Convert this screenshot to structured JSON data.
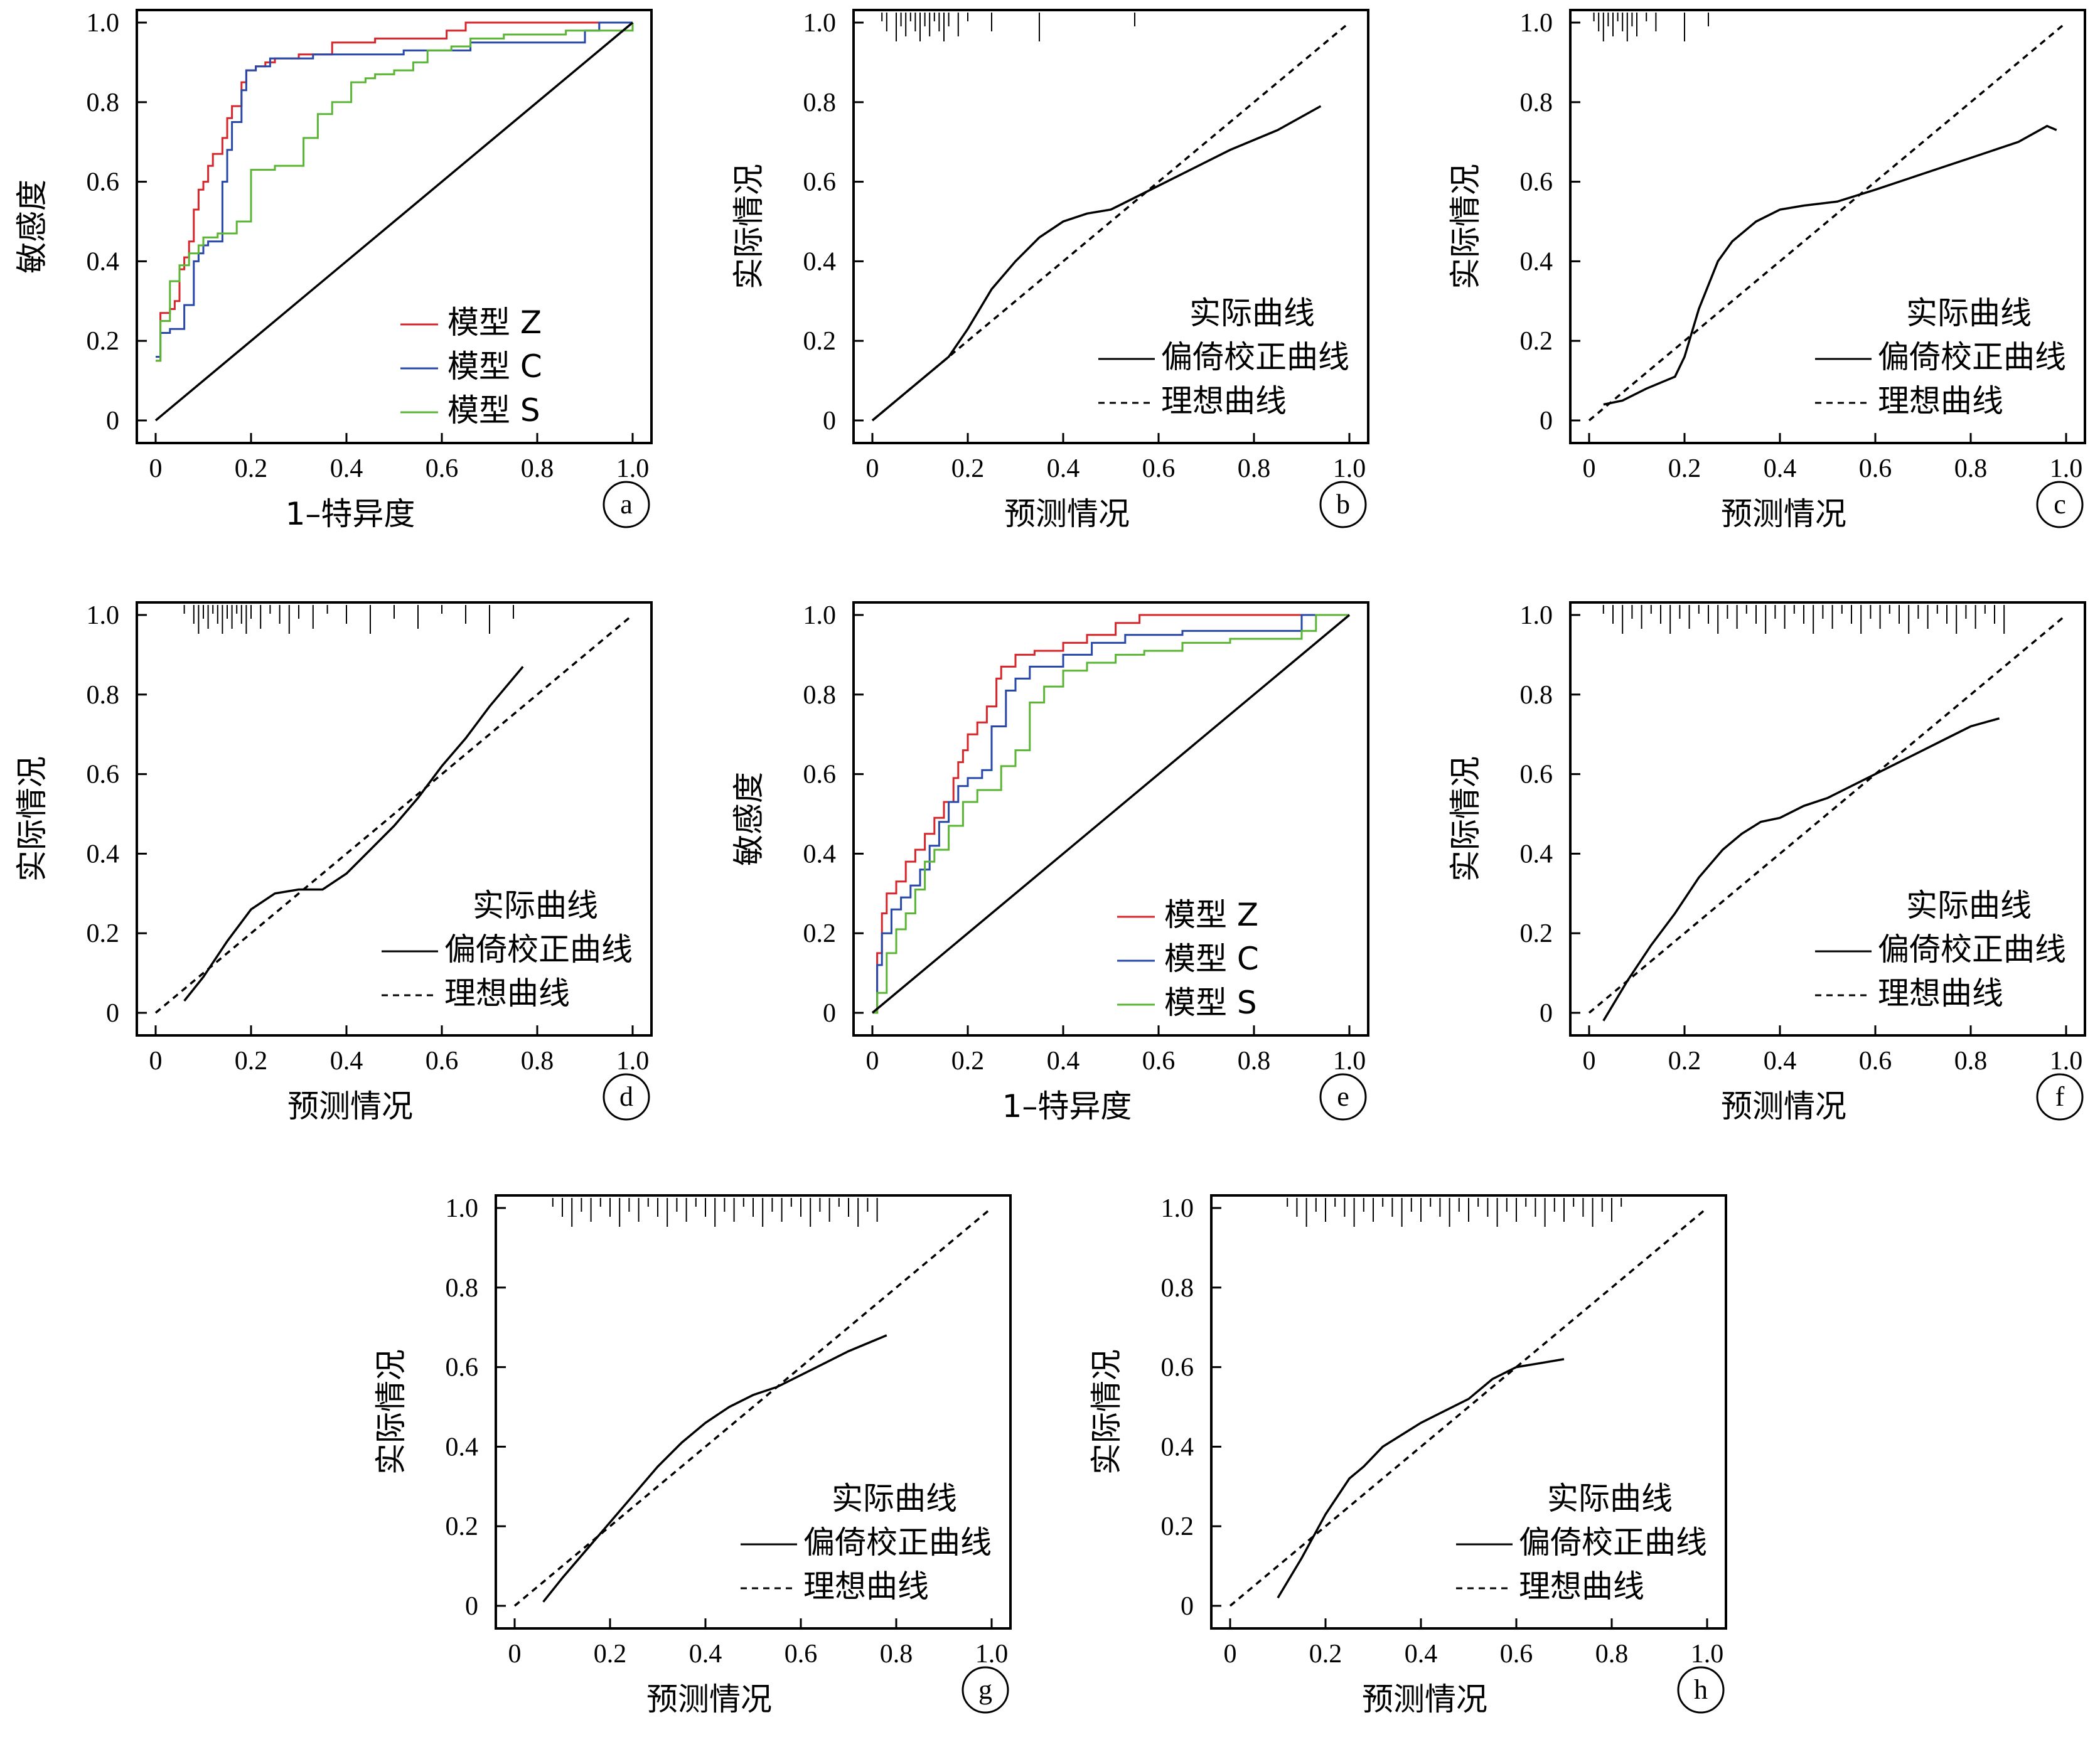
{
  "colors": {
    "model_z": "#d7262b",
    "model_c": "#2748a8",
    "model_s": "#5bb535",
    "curve": "#000000",
    "ideal": "#000000"
  },
  "x_ticks": [
    "0",
    "0.2",
    "0.4",
    "0.6",
    "0.8",
    "1.0"
  ],
  "y_ticks": [
    "0",
    "0.2",
    "0.4",
    "0.6",
    "0.8",
    "1.0"
  ],
  "chart_data": [
    {
      "panel": "a",
      "type": "line",
      "xlabel": "1–特异度",
      "ylabel": "敏感度",
      "xlim": [
        0,
        1
      ],
      "ylim": [
        0,
        1
      ],
      "grid": false,
      "legend": "bottom-right",
      "series": [
        {
          "name": "模型 Z",
          "color": "#d7262b",
          "step": true,
          "x": [
            0,
            0.01,
            0.03,
            0.04,
            0.05,
            0.06,
            0.07,
            0.08,
            0.09,
            0.1,
            0.11,
            0.12,
            0.14,
            0.15,
            0.16,
            0.18,
            0.19,
            0.21,
            0.23,
            0.25,
            0.3,
            0.37,
            0.46,
            0.61,
            0.65,
            1.0
          ],
          "y": [
            0.15,
            0.27,
            0.28,
            0.3,
            0.38,
            0.41,
            0.45,
            0.53,
            0.58,
            0.6,
            0.64,
            0.67,
            0.71,
            0.76,
            0.79,
            0.85,
            0.88,
            0.89,
            0.9,
            0.91,
            0.92,
            0.95,
            0.96,
            0.98,
            1.0,
            1.0
          ]
        },
        {
          "name": "模型 C",
          "color": "#2748a8",
          "step": true,
          "x": [
            0,
            0.01,
            0.03,
            0.06,
            0.08,
            0.09,
            0.1,
            0.11,
            0.14,
            0.15,
            0.16,
            0.18,
            0.19,
            0.21,
            0.24,
            0.33,
            0.49,
            0.52,
            0.66,
            0.9,
            0.93,
            1.0
          ],
          "y": [
            0.16,
            0.22,
            0.23,
            0.29,
            0.4,
            0.42,
            0.44,
            0.45,
            0.6,
            0.68,
            0.75,
            0.83,
            0.88,
            0.89,
            0.91,
            0.92,
            0.92,
            0.93,
            0.95,
            0.98,
            1.0,
            1.0
          ]
        },
        {
          "name": "模型 S",
          "color": "#5bb535",
          "step": true,
          "x": [
            0,
            0.01,
            0.03,
            0.05,
            0.07,
            0.09,
            0.1,
            0.13,
            0.17,
            0.2,
            0.25,
            0.31,
            0.34,
            0.37,
            0.41,
            0.44,
            0.46,
            0.5,
            0.54,
            0.57,
            0.62,
            0.66,
            0.73,
            0.86,
            1.0
          ],
          "y": [
            0.15,
            0.25,
            0.35,
            0.39,
            0.42,
            0.44,
            0.46,
            0.47,
            0.5,
            0.63,
            0.64,
            0.71,
            0.77,
            0.8,
            0.85,
            0.86,
            0.87,
            0.88,
            0.9,
            0.93,
            0.94,
            0.96,
            0.97,
            0.98,
            1.0
          ]
        },
        {
          "name": "",
          "color": "#000000",
          "x": [
            0,
            1
          ],
          "y": [
            0,
            1
          ]
        }
      ]
    },
    {
      "panel": "b",
      "type": "line",
      "xlabel": "预测情况",
      "ylabel": "实际情况",
      "xlim": [
        0,
        1
      ],
      "ylim": [
        0,
        1
      ],
      "grid": false,
      "legend": "bottom-right",
      "legend_title": "实际曲线",
      "series": [
        {
          "name": "偏倚校正曲线",
          "style": "solid",
          "x": [
            0.0,
            0.1,
            0.16,
            0.2,
            0.25,
            0.3,
            0.35,
            0.4,
            0.45,
            0.5,
            0.55,
            0.65,
            0.75,
            0.85,
            0.94
          ],
          "y": [
            0.0,
            0.1,
            0.16,
            0.23,
            0.33,
            0.4,
            0.46,
            0.5,
            0.52,
            0.53,
            0.56,
            0.62,
            0.68,
            0.73,
            0.79
          ]
        },
        {
          "name": "理想曲线",
          "style": "dashed",
          "x": [
            0,
            1
          ],
          "y": [
            0,
            1
          ]
        }
      ],
      "rug_x": [
        0.02,
        0.03,
        0.05,
        0.06,
        0.07,
        0.08,
        0.09,
        0.1,
        0.11,
        0.12,
        0.13,
        0.14,
        0.15,
        0.16,
        0.18,
        0.2,
        0.25,
        0.35,
        0.55
      ]
    },
    {
      "panel": "c",
      "type": "line",
      "xlabel": "预测情况",
      "ylabel": "实际情况",
      "xlim": [
        0,
        1
      ],
      "ylim": [
        0,
        1
      ],
      "grid": false,
      "legend": "bottom-right",
      "legend_title": "实际曲线",
      "series": [
        {
          "name": "偏倚校正曲线",
          "style": "solid",
          "x": [
            0.03,
            0.07,
            0.12,
            0.18,
            0.2,
            0.23,
            0.27,
            0.3,
            0.35,
            0.4,
            0.45,
            0.52,
            0.6,
            0.7,
            0.8,
            0.9,
            0.96,
            0.98
          ],
          "y": [
            0.04,
            0.05,
            0.08,
            0.11,
            0.16,
            0.28,
            0.4,
            0.45,
            0.5,
            0.53,
            0.54,
            0.55,
            0.58,
            0.62,
            0.66,
            0.7,
            0.74,
            0.73
          ]
        },
        {
          "name": "理想曲线",
          "style": "dashed",
          "x": [
            0,
            1
          ],
          "y": [
            0,
            1
          ]
        }
      ],
      "rug_x": [
        0.01,
        0.02,
        0.03,
        0.04,
        0.05,
        0.06,
        0.07,
        0.08,
        0.09,
        0.1,
        0.12,
        0.14,
        0.2,
        0.25
      ]
    },
    {
      "panel": "d",
      "type": "line",
      "xlabel": "预测情况",
      "ylabel": "实际情况",
      "xlim": [
        0,
        1
      ],
      "ylim": [
        0,
        1
      ],
      "grid": false,
      "legend": "bottom-right",
      "legend_title": "实际曲线",
      "series": [
        {
          "name": "偏倚校正曲线",
          "style": "solid",
          "x": [
            0.06,
            0.1,
            0.15,
            0.2,
            0.25,
            0.3,
            0.35,
            0.4,
            0.45,
            0.5,
            0.55,
            0.6,
            0.65,
            0.7,
            0.77
          ],
          "y": [
            0.03,
            0.09,
            0.18,
            0.26,
            0.3,
            0.31,
            0.31,
            0.35,
            0.41,
            0.47,
            0.54,
            0.62,
            0.69,
            0.77,
            0.87
          ]
        },
        {
          "name": "理想曲线",
          "style": "dashed",
          "x": [
            0,
            1
          ],
          "y": [
            0,
            1
          ]
        }
      ],
      "rug_x": [
        0.06,
        0.08,
        0.09,
        0.1,
        0.11,
        0.12,
        0.13,
        0.14,
        0.15,
        0.16,
        0.17,
        0.18,
        0.19,
        0.2,
        0.22,
        0.24,
        0.26,
        0.28,
        0.3,
        0.33,
        0.36,
        0.4,
        0.45,
        0.5,
        0.55,
        0.6,
        0.65,
        0.7,
        0.75
      ]
    },
    {
      "panel": "e",
      "type": "line",
      "xlabel": "1–特异度",
      "ylabel": "敏感度",
      "xlim": [
        0,
        1
      ],
      "ylim": [
        0,
        1
      ],
      "grid": false,
      "legend": "bottom-right",
      "series": [
        {
          "name": "模型 Z",
          "color": "#d7262b",
          "step": true,
          "x": [
            0,
            0.01,
            0.02,
            0.03,
            0.05,
            0.07,
            0.09,
            0.11,
            0.13,
            0.15,
            0.17,
            0.18,
            0.19,
            0.2,
            0.22,
            0.24,
            0.26,
            0.27,
            0.3,
            0.34,
            0.4,
            0.45,
            0.51,
            0.56,
            0.9,
            1.0
          ],
          "y": [
            0,
            0.15,
            0.25,
            0.3,
            0.33,
            0.38,
            0.41,
            0.45,
            0.49,
            0.53,
            0.59,
            0.63,
            0.66,
            0.7,
            0.73,
            0.77,
            0.84,
            0.87,
            0.9,
            0.91,
            0.93,
            0.95,
            0.98,
            1.0,
            1.0,
            1.0
          ]
        },
        {
          "name": "模型 C",
          "color": "#2748a8",
          "step": true,
          "x": [
            0,
            0.01,
            0.02,
            0.04,
            0.06,
            0.08,
            0.1,
            0.12,
            0.14,
            0.16,
            0.18,
            0.2,
            0.23,
            0.25,
            0.28,
            0.3,
            0.33,
            0.4,
            0.46,
            0.53,
            0.65,
            0.9,
            1.0
          ],
          "y": [
            0,
            0.12,
            0.2,
            0.26,
            0.29,
            0.32,
            0.36,
            0.42,
            0.48,
            0.53,
            0.57,
            0.59,
            0.61,
            0.72,
            0.81,
            0.84,
            0.87,
            0.9,
            0.93,
            0.95,
            0.96,
            1.0,
            1.0
          ]
        },
        {
          "name": "模型 S",
          "color": "#5bb535",
          "step": true,
          "x": [
            0,
            0.01,
            0.03,
            0.05,
            0.07,
            0.09,
            0.11,
            0.13,
            0.16,
            0.19,
            0.22,
            0.27,
            0.3,
            0.33,
            0.36,
            0.4,
            0.45,
            0.51,
            0.57,
            0.65,
            0.75,
            0.9,
            0.93,
            1.0
          ],
          "y": [
            0,
            0.05,
            0.15,
            0.21,
            0.25,
            0.31,
            0.38,
            0.41,
            0.47,
            0.53,
            0.56,
            0.62,
            0.66,
            0.78,
            0.82,
            0.86,
            0.88,
            0.9,
            0.91,
            0.93,
            0.94,
            0.96,
            1.0,
            1.0
          ]
        },
        {
          "name": "",
          "color": "#000000",
          "x": [
            0,
            1
          ],
          "y": [
            0,
            1
          ]
        }
      ]
    },
    {
      "panel": "f",
      "type": "line",
      "xlabel": "预测情况",
      "ylabel": "实际情况",
      "xlim": [
        0,
        1
      ],
      "ylim": [
        0,
        1
      ],
      "grid": false,
      "legend": "bottom-right",
      "legend_title": "实际曲线",
      "series": [
        {
          "name": "偏倚校正曲线",
          "style": "solid",
          "x": [
            0.03,
            0.08,
            0.13,
            0.18,
            0.23,
            0.28,
            0.32,
            0.36,
            0.4,
            0.45,
            0.5,
            0.55,
            0.6,
            0.65,
            0.7,
            0.75,
            0.8,
            0.86
          ],
          "y": [
            -0.02,
            0.08,
            0.17,
            0.25,
            0.34,
            0.41,
            0.45,
            0.48,
            0.49,
            0.52,
            0.54,
            0.57,
            0.6,
            0.63,
            0.66,
            0.69,
            0.72,
            0.74
          ]
        },
        {
          "name": "理想曲线",
          "style": "dashed",
          "x": [
            0,
            1
          ],
          "y": [
            0,
            1
          ]
        }
      ],
      "rug_x": [
        0.03,
        0.05,
        0.07,
        0.09,
        0.11,
        0.13,
        0.15,
        0.17,
        0.19,
        0.21,
        0.23,
        0.25,
        0.27,
        0.29,
        0.31,
        0.33,
        0.35,
        0.37,
        0.39,
        0.41,
        0.43,
        0.45,
        0.47,
        0.49,
        0.51,
        0.53,
        0.55,
        0.57,
        0.59,
        0.61,
        0.63,
        0.65,
        0.67,
        0.69,
        0.71,
        0.73,
        0.75,
        0.77,
        0.79,
        0.81,
        0.83,
        0.85,
        0.87
      ]
    },
    {
      "panel": "g",
      "type": "line",
      "xlabel": "预测情况",
      "ylabel": "实际情况",
      "xlim": [
        0,
        1
      ],
      "ylim": [
        0,
        1
      ],
      "grid": false,
      "legend": "bottom-right",
      "legend_title": "实际曲线",
      "series": [
        {
          "name": "偏倚校正曲线",
          "style": "solid",
          "x": [
            0.06,
            0.1,
            0.15,
            0.2,
            0.25,
            0.3,
            0.35,
            0.4,
            0.45,
            0.5,
            0.55,
            0.6,
            0.65,
            0.7,
            0.78
          ],
          "y": [
            0.01,
            0.07,
            0.14,
            0.21,
            0.28,
            0.35,
            0.41,
            0.46,
            0.5,
            0.53,
            0.55,
            0.58,
            0.61,
            0.64,
            0.68
          ]
        },
        {
          "name": "理想曲线",
          "style": "dashed",
          "x": [
            0,
            1
          ],
          "y": [
            0,
            1
          ]
        }
      ],
      "rug_x": [
        0.08,
        0.1,
        0.12,
        0.14,
        0.16,
        0.18,
        0.2,
        0.22,
        0.24,
        0.26,
        0.28,
        0.3,
        0.32,
        0.34,
        0.36,
        0.38,
        0.4,
        0.42,
        0.44,
        0.46,
        0.48,
        0.5,
        0.52,
        0.54,
        0.56,
        0.58,
        0.6,
        0.62,
        0.64,
        0.66,
        0.68,
        0.7,
        0.72,
        0.74,
        0.76
      ]
    },
    {
      "panel": "h",
      "type": "line",
      "xlabel": "预测情况",
      "ylabel": "实际情况",
      "xlim": [
        0,
        1
      ],
      "ylim": [
        0,
        1
      ],
      "grid": false,
      "legend": "bottom-right",
      "legend_title": "实际曲线",
      "series": [
        {
          "name": "偏倚校正曲线",
          "style": "solid",
          "x": [
            0.1,
            0.15,
            0.2,
            0.25,
            0.28,
            0.32,
            0.36,
            0.4,
            0.45,
            0.5,
            0.55,
            0.6,
            0.65,
            0.7
          ],
          "y": [
            0.02,
            0.12,
            0.23,
            0.32,
            0.35,
            0.4,
            0.43,
            0.46,
            0.49,
            0.52,
            0.57,
            0.6,
            0.61,
            0.62
          ]
        },
        {
          "name": "理想曲线",
          "style": "dashed",
          "x": [
            0,
            1
          ],
          "y": [
            0,
            1
          ]
        }
      ],
      "rug_x": [
        0.12,
        0.14,
        0.16,
        0.18,
        0.2,
        0.22,
        0.24,
        0.26,
        0.28,
        0.3,
        0.32,
        0.34,
        0.36,
        0.38,
        0.4,
        0.42,
        0.44,
        0.46,
        0.48,
        0.5,
        0.52,
        0.54,
        0.56,
        0.58,
        0.6,
        0.62,
        0.64,
        0.66,
        0.68,
        0.7,
        0.72,
        0.74,
        0.76,
        0.78,
        0.8,
        0.82
      ]
    }
  ]
}
